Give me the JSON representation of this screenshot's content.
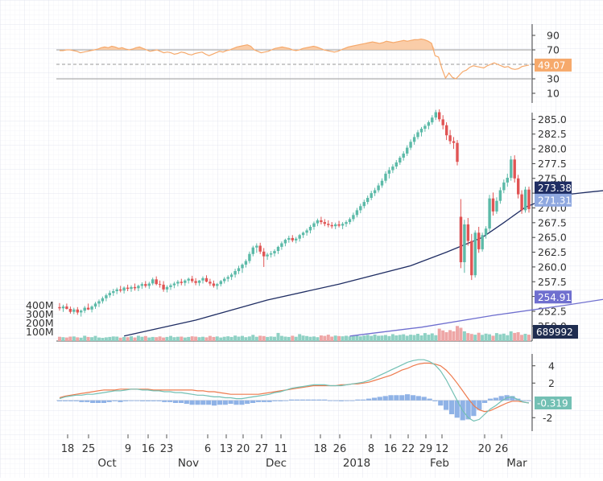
{
  "chart_data": {
    "type": "candlestick",
    "panels": [
      {
        "name": "rsi",
        "yticks": [
          10,
          30,
          50,
          70,
          90
        ],
        "ylim": [
          0,
          100
        ],
        "reference_lines": [
          30,
          50,
          70
        ],
        "last_value_label": "49.07",
        "last_value_color": "#f6a96b"
      },
      {
        "name": "price",
        "yticks": [
          "250.0",
          "252.5",
          "255.0",
          "257.5",
          "260.0",
          "262.5",
          "265.0",
          "267.5",
          "270.0",
          "272.5",
          "275.0",
          "277.5",
          "280.0",
          "282.5",
          "285.0"
        ],
        "ylim": [
          248.0,
          287.5
        ],
        "last_labels": [
          {
            "text": "273.38",
            "color": "#1f2d63",
            "value": 273.38
          },
          {
            "text": "271.31",
            "color": "#8fa8e0",
            "value": 271.31
          },
          {
            "text": "254.91",
            "color": "#6f6fcf",
            "value": 254.91
          }
        ],
        "volume_yticks": [
          "100M",
          "200M",
          "300M",
          "400M"
        ],
        "volume_last_label": "689992",
        "up_color": "#5cbaa8",
        "down_color": "#e05454"
      },
      {
        "name": "macd",
        "yticks": [
          "4",
          "2",
          "-2"
        ],
        "ylim": [
          -3.0,
          5.0
        ],
        "last_value_label": "-0.319",
        "last_value_color": "#73c0b4"
      }
    ],
    "x_minor_ticks": [
      "18",
      "25",
      "9",
      "16",
      "23",
      "6",
      "13",
      "20",
      "27",
      "11",
      "18",
      "26",
      "8",
      "16",
      "22",
      "29",
      "12",
      "20",
      "26"
    ],
    "x_major_ticks": [
      "Oct",
      "Nov",
      "Dec",
      "2018",
      "Feb",
      "Mar"
    ],
    "candles": [
      [
        253.2,
        253.9,
        252.6,
        253.0
      ],
      [
        253.0,
        253.6,
        252.4,
        253.3
      ],
      [
        253.3,
        253.8,
        252.8,
        252.9
      ],
      [
        252.9,
        253.3,
        252.1,
        252.4
      ],
      [
        252.4,
        253.1,
        252.0,
        252.8
      ],
      [
        252.8,
        253.2,
        251.9,
        252.3
      ],
      [
        252.3,
        252.8,
        251.6,
        252.6
      ],
      [
        252.6,
        253.4,
        252.2,
        253.1
      ],
      [
        253.1,
        253.8,
        252.7,
        252.8
      ],
      [
        252.8,
        253.5,
        252.3,
        253.3
      ],
      [
        253.3,
        254.1,
        252.9,
        253.8
      ],
      [
        253.8,
        254.5,
        253.2,
        254.2
      ],
      [
        254.2,
        255.0,
        253.8,
        254.7
      ],
      [
        254.7,
        255.5,
        254.2,
        255.2
      ],
      [
        255.2,
        256.0,
        254.8,
        255.6
      ],
      [
        255.6,
        256.3,
        255.1,
        255.9
      ],
      [
        255.9,
        256.5,
        255.4,
        256.2
      ],
      [
        256.2,
        256.8,
        255.7,
        256.0
      ],
      [
        256.0,
        256.7,
        255.5,
        256.5
      ],
      [
        256.5,
        257.0,
        255.9,
        256.3
      ],
      [
        256.3,
        256.9,
        255.8,
        256.6
      ],
      [
        256.6,
        257.2,
        256.0,
        256.4
      ],
      [
        256.4,
        257.0,
        255.9,
        256.8
      ],
      [
        256.8,
        257.4,
        256.3,
        257.1
      ],
      [
        257.1,
        257.6,
        256.5,
        256.8
      ],
      [
        256.8,
        257.5,
        256.3,
        257.2
      ],
      [
        257.2,
        258.2,
        256.9,
        257.9
      ],
      [
        257.9,
        258.4,
        256.9,
        257.1
      ],
      [
        257.1,
        257.7,
        256.5,
        257.0
      ],
      [
        257.0,
        257.6,
        255.8,
        256.2
      ],
      [
        256.2,
        256.9,
        255.7,
        256.6
      ],
      [
        256.6,
        257.2,
        256.1,
        256.9
      ],
      [
        256.9,
        257.5,
        256.4,
        257.2
      ],
      [
        257.2,
        257.8,
        256.7,
        257.5
      ],
      [
        257.5,
        258.0,
        256.9,
        257.3
      ],
      [
        257.3,
        257.9,
        256.8,
        257.7
      ],
      [
        257.7,
        258.2,
        257.2,
        258.0
      ],
      [
        258.0,
        258.5,
        257.3,
        257.6
      ],
      [
        257.6,
        258.1,
        256.9,
        257.3
      ],
      [
        257.3,
        257.8,
        256.8,
        257.7
      ],
      [
        257.7,
        258.4,
        257.2,
        258.1
      ],
      [
        258.1,
        258.6,
        257.4,
        257.5
      ],
      [
        257.5,
        258.0,
        256.8,
        257.2
      ],
      [
        257.2,
        257.7,
        256.5,
        256.8
      ],
      [
        256.8,
        257.3,
        256.2,
        257.1
      ],
      [
        257.1,
        257.8,
        256.7,
        257.6
      ],
      [
        257.6,
        258.3,
        257.2,
        258.0
      ],
      [
        258.0,
        258.6,
        257.5,
        258.3
      ],
      [
        258.3,
        259.0,
        257.8,
        258.7
      ],
      [
        258.7,
        259.7,
        258.2,
        259.3
      ],
      [
        259.3,
        260.2,
        258.8,
        259.8
      ],
      [
        259.8,
        260.6,
        259.0,
        260.4
      ],
      [
        260.4,
        261.3,
        259.9,
        261.0
      ],
      [
        261.0,
        262.6,
        260.6,
        262.2
      ],
      [
        262.2,
        263.6,
        261.8,
        263.3
      ],
      [
        263.3,
        264.0,
        262.4,
        263.6
      ],
      [
        263.6,
        264.1,
        262.2,
        262.6
      ],
      [
        262.6,
        263.2,
        260.0,
        261.8
      ],
      [
        261.8,
        262.4,
        261.2,
        262.1
      ],
      [
        262.1,
        262.7,
        261.6,
        262.3
      ],
      [
        262.3,
        263.0,
        261.8,
        262.7
      ],
      [
        262.7,
        263.6,
        262.2,
        263.4
      ],
      [
        263.4,
        264.3,
        262.9,
        264.0
      ],
      [
        264.0,
        264.8,
        263.5,
        264.6
      ],
      [
        264.6,
        265.3,
        264.1,
        264.9
      ],
      [
        264.9,
        265.4,
        264.2,
        264.5
      ],
      [
        264.5,
        265.1,
        264.0,
        264.8
      ],
      [
        264.8,
        265.6,
        264.3,
        265.4
      ],
      [
        265.4,
        266.0,
        264.9,
        265.8
      ],
      [
        265.8,
        266.5,
        265.3,
        266.2
      ],
      [
        266.2,
        267.1,
        265.7,
        266.8
      ],
      [
        266.8,
        267.7,
        266.3,
        267.4
      ],
      [
        267.4,
        268.2,
        266.9,
        267.9
      ],
      [
        267.9,
        268.5,
        267.2,
        267.6
      ],
      [
        267.6,
        268.1,
        266.9,
        267.3
      ],
      [
        267.3,
        267.9,
        266.7,
        267.1
      ],
      [
        267.1,
        267.6,
        266.5,
        266.9
      ],
      [
        266.9,
        267.5,
        266.4,
        267.2
      ],
      [
        267.2,
        267.8,
        266.7,
        267.0
      ],
      [
        267.0,
        267.6,
        266.4,
        267.3
      ],
      [
        267.3,
        267.9,
        266.8,
        267.6
      ],
      [
        267.6,
        268.4,
        267.2,
        268.1
      ],
      [
        268.1,
        269.2,
        267.7,
        268.8
      ],
      [
        268.8,
        270.0,
        268.4,
        269.6
      ],
      [
        269.6,
        270.7,
        269.1,
        270.3
      ],
      [
        270.3,
        271.4,
        269.9,
        271.0
      ],
      [
        271.0,
        272.1,
        270.6,
        271.7
      ],
      [
        271.7,
        272.9,
        271.3,
        272.5
      ],
      [
        272.5,
        273.4,
        272.0,
        273.0
      ],
      [
        273.0,
        274.2,
        272.6,
        273.8
      ],
      [
        273.8,
        275.0,
        273.4,
        274.6
      ],
      [
        274.6,
        276.2,
        274.2,
        275.8
      ],
      [
        275.8,
        276.9,
        275.0,
        276.4
      ],
      [
        276.4,
        277.4,
        275.9,
        277.0
      ],
      [
        277.0,
        278.1,
        276.6,
        277.7
      ],
      [
        277.7,
        278.8,
        277.3,
        278.5
      ],
      [
        278.5,
        279.6,
        278.0,
        279.2
      ],
      [
        279.2,
        280.6,
        278.8,
        280.2
      ],
      [
        280.2,
        281.6,
        279.8,
        281.2
      ],
      [
        281.2,
        282.5,
        280.7,
        282.0
      ],
      [
        282.0,
        283.2,
        281.6,
        282.8
      ],
      [
        282.8,
        283.7,
        282.1,
        283.4
      ],
      [
        283.4,
        284.2,
        282.9,
        283.9
      ],
      [
        283.9,
        284.8,
        283.3,
        284.5
      ],
      [
        284.5,
        285.7,
        284.1,
        285.3
      ],
      [
        285.3,
        286.6,
        284.9,
        286.2
      ],
      [
        286.2,
        286.7,
        284.6,
        285.0
      ],
      [
        285.0,
        285.7,
        283.3,
        284.0
      ],
      [
        284.0,
        284.5,
        281.5,
        282.3
      ],
      [
        282.3,
        283.2,
        280.8,
        281.3
      ],
      [
        281.3,
        282.0,
        280.0,
        281.0
      ],
      [
        281.0,
        281.5,
        277.2,
        277.8
      ],
      [
        268.5,
        271.5,
        259.8,
        260.8
      ],
      [
        260.8,
        268.0,
        259.0,
        267.2
      ],
      [
        267.2,
        268.3,
        263.6,
        264.4
      ],
      [
        264.4,
        265.6,
        257.8,
        258.6
      ],
      [
        258.6,
        266.2,
        258.2,
        265.8
      ],
      [
        265.8,
        266.8,
        262.4,
        263.0
      ],
      [
        263.0,
        265.8,
        262.6,
        265.4
      ],
      [
        265.4,
        266.9,
        264.8,
        266.5
      ],
      [
        266.5,
        272.2,
        266.0,
        271.6
      ],
      [
        271.6,
        272.6,
        268.7,
        269.4
      ],
      [
        269.4,
        271.8,
        269.0,
        271.2
      ],
      [
        271.2,
        273.5,
        270.7,
        273.0
      ],
      [
        273.0,
        274.8,
        272.5,
        274.3
      ],
      [
        274.3,
        275.8,
        273.6,
        275.1
      ],
      [
        275.1,
        278.8,
        274.6,
        278.2
      ],
      [
        278.2,
        278.9,
        274.3,
        275.0
      ],
      [
        275.0,
        275.6,
        271.6,
        272.3
      ],
      [
        272.3,
        273.0,
        269.0,
        269.6
      ],
      [
        269.6,
        273.6,
        269.2,
        273.1
      ],
      [
        273.1,
        273.6,
        269.2,
        269.8
      ]
    ],
    "moving_average_long": [
      [
        0,
        248.3
      ],
      [
        20,
        251.0
      ],
      [
        40,
        254.4
      ],
      [
        60,
        257.1
      ],
      [
        80,
        260.2
      ],
      [
        90,
        262.5
      ],
      [
        100,
        265.0
      ],
      [
        106,
        267.5
      ],
      [
        112,
        270.1
      ],
      [
        118,
        271.6
      ],
      [
        124,
        272.3
      ],
      [
        130,
        272.7
      ],
      [
        135,
        273.0
      ],
      [
        139,
        273.4
      ]
    ],
    "moving_average_long_start_index": 18,
    "moving_average_slow": [
      [
        0,
        248.3
      ],
      [
        20,
        249.8
      ],
      [
        40,
        251.8
      ],
      [
        60,
        253.5
      ],
      [
        75,
        254.9
      ]
    ],
    "moving_average_slow_start_index": 81,
    "volume_colors_up": "#8fd1c4",
    "volume_colors_down": "#eea6a6",
    "volumes": [
      48,
      44,
      40,
      50,
      52,
      42,
      38,
      60,
      46,
      44,
      58,
      40,
      36,
      42,
      46,
      52,
      50,
      38,
      46,
      44,
      54,
      40,
      60,
      48,
      56,
      40,
      46,
      44,
      52,
      40,
      46,
      58,
      44,
      48,
      50,
      40,
      46,
      54,
      50,
      44,
      48,
      42,
      58,
      46,
      52,
      40,
      48,
      54,
      46,
      62,
      50,
      58,
      44,
      52,
      70,
      48,
      60,
      56,
      46,
      52,
      48,
      92,
      58,
      50,
      46,
      60,
      48,
      78,
      62,
      56,
      48,
      52,
      44,
      64,
      58,
      72,
      50,
      62,
      56,
      54,
      60,
      52,
      58,
      66,
      54,
      62,
      70,
      58,
      74,
      60,
      62,
      68,
      56,
      78,
      64,
      70,
      76,
      60,
      72,
      68,
      82,
      64,
      90,
      72,
      86,
      66,
      140,
      120,
      100,
      124,
      110,
      170,
      150,
      110,
      90,
      80,
      72,
      94,
      70,
      84,
      76,
      60,
      90,
      76,
      84,
      66,
      110,
      92,
      100,
      70,
      82,
      72
    ],
    "rsi": [
      69,
      69,
      70,
      70,
      69,
      68,
      66,
      67,
      68,
      69,
      70,
      71,
      73,
      74,
      73,
      75,
      74,
      72,
      73,
      71,
      70,
      71,
      73,
      74,
      72,
      70,
      68,
      69,
      70,
      68,
      66,
      67,
      66,
      64,
      65,
      67,
      66,
      64,
      63,
      65,
      66,
      67,
      64,
      62,
      64,
      66,
      68,
      67,
      69,
      70,
      72,
      74,
      75,
      76,
      77,
      75,
      70,
      68,
      66,
      67,
      68,
      70,
      72,
      73,
      74,
      73,
      72,
      70,
      69,
      70,
      72,
      73,
      74,
      75,
      74,
      72,
      70,
      69,
      68,
      67,
      68,
      70,
      72,
      74,
      75,
      76,
      77,
      78,
      79,
      80,
      81,
      80,
      79,
      80,
      82,
      81,
      80,
      81,
      82,
      83,
      82,
      83,
      84,
      84,
      85,
      84,
      82,
      79,
      62,
      60,
      44,
      31,
      38,
      32,
      30,
      35,
      40,
      42,
      46,
      48,
      47,
      46,
      45,
      48,
      50,
      52,
      50,
      48,
      46,
      47,
      44,
      43,
      44,
      47,
      48,
      49
    ],
    "macd_line": [
      0.2,
      0.4,
      0.5,
      0.6,
      0.6,
      0.7,
      0.7,
      0.8,
      0.9,
      1.0,
      1.1,
      1.1,
      1.2,
      1.3,
      1.3,
      1.2,
      1.2,
      1.1,
      1.1,
      1.0,
      1.0,
      0.9,
      0.9,
      0.8,
      0.7,
      0.6,
      0.6,
      0.5,
      0.4,
      0.4,
      0.3,
      0.3,
      0.2,
      0.2,
      0.3,
      0.4,
      0.5,
      0.6,
      0.7,
      0.9,
      1.0,
      1.2,
      1.4,
      1.5,
      1.6,
      1.7,
      1.8,
      1.8,
      1.8,
      1.7,
      1.7,
      1.7,
      1.8,
      1.9,
      2.0,
      2.1,
      2.3,
      2.6,
      2.9,
      3.2,
      3.5,
      3.8,
      4.1,
      4.4,
      4.6,
      4.7,
      4.7,
      4.5,
      4.1,
      3.4,
      2.4,
      1.2,
      0.0,
      -1.2,
      -2.0,
      -2.4,
      -2.2,
      -1.6,
      -1.0,
      -0.6,
      -0.1,
      0.3,
      0.4,
      0.1,
      -0.2,
      -0.3
    ],
    "signal_line": [
      0.3,
      0.5,
      0.6,
      0.7,
      0.8,
      0.9,
      1.0,
      1.1,
      1.2,
      1.2,
      1.2,
      1.3,
      1.3,
      1.3,
      1.3,
      1.3,
      1.3,
      1.2,
      1.2,
      1.2,
      1.2,
      1.2,
      1.2,
      1.2,
      1.2,
      1.1,
      1.1,
      1.0,
      1.0,
      0.9,
      0.8,
      0.7,
      0.7,
      0.7,
      0.7,
      0.7,
      0.7,
      0.8,
      0.9,
      1.0,
      1.1,
      1.2,
      1.3,
      1.4,
      1.5,
      1.6,
      1.7,
      1.7,
      1.7,
      1.7,
      1.7,
      1.8,
      1.8,
      1.9,
      1.9,
      2.0,
      2.1,
      2.3,
      2.5,
      2.7,
      2.9,
      3.2,
      3.5,
      3.7,
      4.0,
      4.2,
      4.3,
      4.3,
      4.2,
      4.0,
      3.5,
      2.8,
      2.0,
      1.1,
      0.2,
      -0.6,
      -1.1,
      -1.3,
      -1.2,
      -0.9,
      -0.6,
      -0.3,
      -0.1,
      -0.1,
      -0.2,
      -0.3
    ],
    "line_colors": {
      "rsi": "#f6a96b",
      "ma_long": "#1f2d63",
      "ma_slow": "#6f6fcf",
      "macd": "#73c0b4",
      "signal": "#ee7b4e",
      "histogram": "#8fb2e6"
    }
  }
}
